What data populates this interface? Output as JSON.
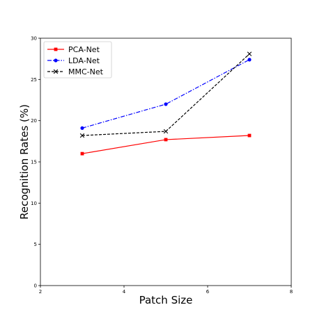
{
  "chart_data": {
    "type": "line",
    "title": "",
    "xlabel": "Patch Size",
    "ylabel": "Recognition Rates (%)",
    "xlim": [
      2,
      8
    ],
    "ylim": [
      0,
      30
    ],
    "xticks": [
      "2",
      "4",
      "6",
      "8"
    ],
    "yticks": [
      "0",
      "5",
      "10",
      "15",
      "20",
      "25",
      "30"
    ],
    "grid": false,
    "legend_position": "top-left",
    "series": [
      {
        "name": "PCA-Net",
        "x": [
          3,
          5,
          7
        ],
        "y": [
          16.0,
          17.7,
          18.2
        ],
        "color": "#ff0000",
        "line_style": "solid",
        "marker": "square"
      },
      {
        "name": "LDA-Net",
        "x": [
          3,
          5,
          7
        ],
        "y": [
          19.1,
          22.0,
          27.4
        ],
        "color": "#0000ff",
        "line_style": "dashdot",
        "marker": "circle"
      },
      {
        "name": "MMC-Net",
        "x": [
          3,
          5,
          7
        ],
        "y": [
          18.2,
          18.7,
          28.1
        ],
        "color": "#000000",
        "line_style": "dashed",
        "marker": "x"
      }
    ]
  }
}
